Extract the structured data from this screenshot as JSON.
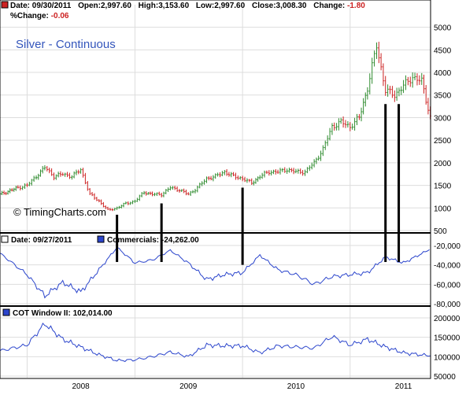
{
  "colors": {
    "up": "#2e8b2e",
    "down": "#cc2222",
    "series": "#2b45cc",
    "title": "#3355bb",
    "marker": "#000000",
    "grid": "#dddddd",
    "frame": "#000000",
    "header_fill": "#ffffff"
  },
  "price_header": {
    "date": "Date: 09/30/2011",
    "open": "Open:2,997.60",
    "high": "High:3,153.60",
    "low": "Low:2,997.60",
    "close": "Close:3,008.30",
    "change_label": "Change:",
    "change_value": "-1.80",
    "pct_label": "%Change:",
    "pct_value": "-0.06"
  },
  "price_title": "Silver - Continuous",
  "watermark": "© TimingCharts.com",
  "comm_header": {
    "date": "Date: 09/27/2011",
    "label": "Commercials: -24,262.00"
  },
  "cot_header": {
    "label": "COT Window II: 102,014.00"
  },
  "chart_data": [
    {
      "type": "candlestick",
      "panel": "price",
      "title": "Silver - Continuous",
      "ylim": [
        500,
        5150
      ],
      "yticks": [
        "500",
        "1000",
        "1500",
        "2000",
        "2500",
        "3000",
        "3500",
        "4000",
        "4500",
        "5000"
      ],
      "x_dates": [
        "2007-10",
        "2007-12",
        "2008-01",
        "2008-02",
        "2008-03",
        "2008-04",
        "2008-05",
        "2008-06",
        "2008-07",
        "2008-08",
        "2008-09",
        "2008-10",
        "2008-11",
        "2008-12",
        "2009-01",
        "2009-02",
        "2009-03",
        "2009-04",
        "2009-05",
        "2009-06",
        "2009-07",
        "2009-08",
        "2009-09",
        "2009-10",
        "2009-11",
        "2009-12",
        "2010-01",
        "2010-02",
        "2010-03",
        "2010-04",
        "2010-05",
        "2010-06",
        "2010-07",
        "2010-08",
        "2010-09",
        "2010-10",
        "2010-11",
        "2010-12",
        "2011-01",
        "2011-02",
        "2011-03",
        "2011-04",
        "2011-05",
        "2011-06",
        "2011-07",
        "2011-08",
        "2011-09",
        "2011-09-30"
      ],
      "close": [
        1300,
        1450,
        1500,
        1700,
        1900,
        1700,
        1750,
        1700,
        1850,
        1300,
        1150,
        950,
        1000,
        1100,
        1150,
        1350,
        1300,
        1300,
        1450,
        1400,
        1300,
        1450,
        1650,
        1700,
        1800,
        1700,
        1650,
        1550,
        1700,
        1800,
        1800,
        1850,
        1800,
        1800,
        2000,
        2300,
        2800,
        2900,
        2800,
        3000,
        3650,
        4600,
        3600,
        3500,
        3700,
        3900,
        3800,
        3008.3
      ]
    },
    {
      "type": "line",
      "panel": "commercials",
      "series": [
        {
          "name": "Commercials",
          "last": -24262.0
        }
      ],
      "ylim": [
        -80000,
        -20000
      ],
      "yticks": [
        "-20,000",
        "-40,000",
        "-60,000",
        "-80,000"
      ],
      "x_dates": [
        "2007-10",
        "2008-01",
        "2008-03",
        "2008-05",
        "2008-07",
        "2008-09",
        "2008-11",
        "2009-01",
        "2009-03",
        "2009-05",
        "2009-07",
        "2009-09",
        "2009-11",
        "2010-01",
        "2010-03",
        "2010-05",
        "2010-07",
        "2010-09",
        "2010-11",
        "2011-01",
        "2011-03",
        "2011-05",
        "2011-07",
        "2011-09-27"
      ],
      "values": [
        -28000,
        -50000,
        -72000,
        -58000,
        -68000,
        -45000,
        -22000,
        -38000,
        -35000,
        -25000,
        -38000,
        -55000,
        -50000,
        -48000,
        -30000,
        -45000,
        -50000,
        -60000,
        -52000,
        -50000,
        -48000,
        -32000,
        -38000,
        -24262
      ]
    },
    {
      "type": "line",
      "panel": "cot",
      "series": [
        {
          "name": "COT Window II",
          "last": 102014.0
        }
      ],
      "ylim": [
        50000,
        200000
      ],
      "yticks": [
        "50000",
        "100000",
        "150000",
        "200000"
      ],
      "x_dates": [
        "2007-10",
        "2008-01",
        "2008-03",
        "2008-05",
        "2008-07",
        "2008-09",
        "2008-11",
        "2009-01",
        "2009-03",
        "2009-05",
        "2009-07",
        "2009-09",
        "2009-11",
        "2010-01",
        "2010-03",
        "2010-05",
        "2010-07",
        "2010-09",
        "2010-11",
        "2011-01",
        "2011-03",
        "2011-05",
        "2011-07",
        "2011-09-30"
      ],
      "values": [
        115000,
        130000,
        185000,
        145000,
        125000,
        105000,
        90000,
        92000,
        100000,
        112000,
        100000,
        130000,
        128000,
        128000,
        110000,
        128000,
        125000,
        122000,
        152000,
        130000,
        145000,
        125000,
        110000,
        102014
      ]
    }
  ],
  "x_axis": {
    "labels": [
      {
        "text": "2008",
        "date": "2008-01-01"
      },
      {
        "text": "2009",
        "date": "2009-01-01"
      },
      {
        "text": "2010",
        "date": "2010-01-01"
      },
      {
        "text": "2011",
        "date": "2011-01-01"
      }
    ],
    "start": "2007-10-01",
    "end": "2011-10-01"
  },
  "markers": [
    {
      "date": "2008-11-01",
      "from": 850,
      "to": -37000
    },
    {
      "date": "2009-04-01",
      "from": 1100,
      "to": -37000
    },
    {
      "date": "2010-01-01",
      "from": 1450,
      "to": -40000
    },
    {
      "date": "2011-05-01",
      "from": 3300,
      "to": -37000
    },
    {
      "date": "2011-06-15",
      "from": 3300,
      "to": -37000
    }
  ]
}
